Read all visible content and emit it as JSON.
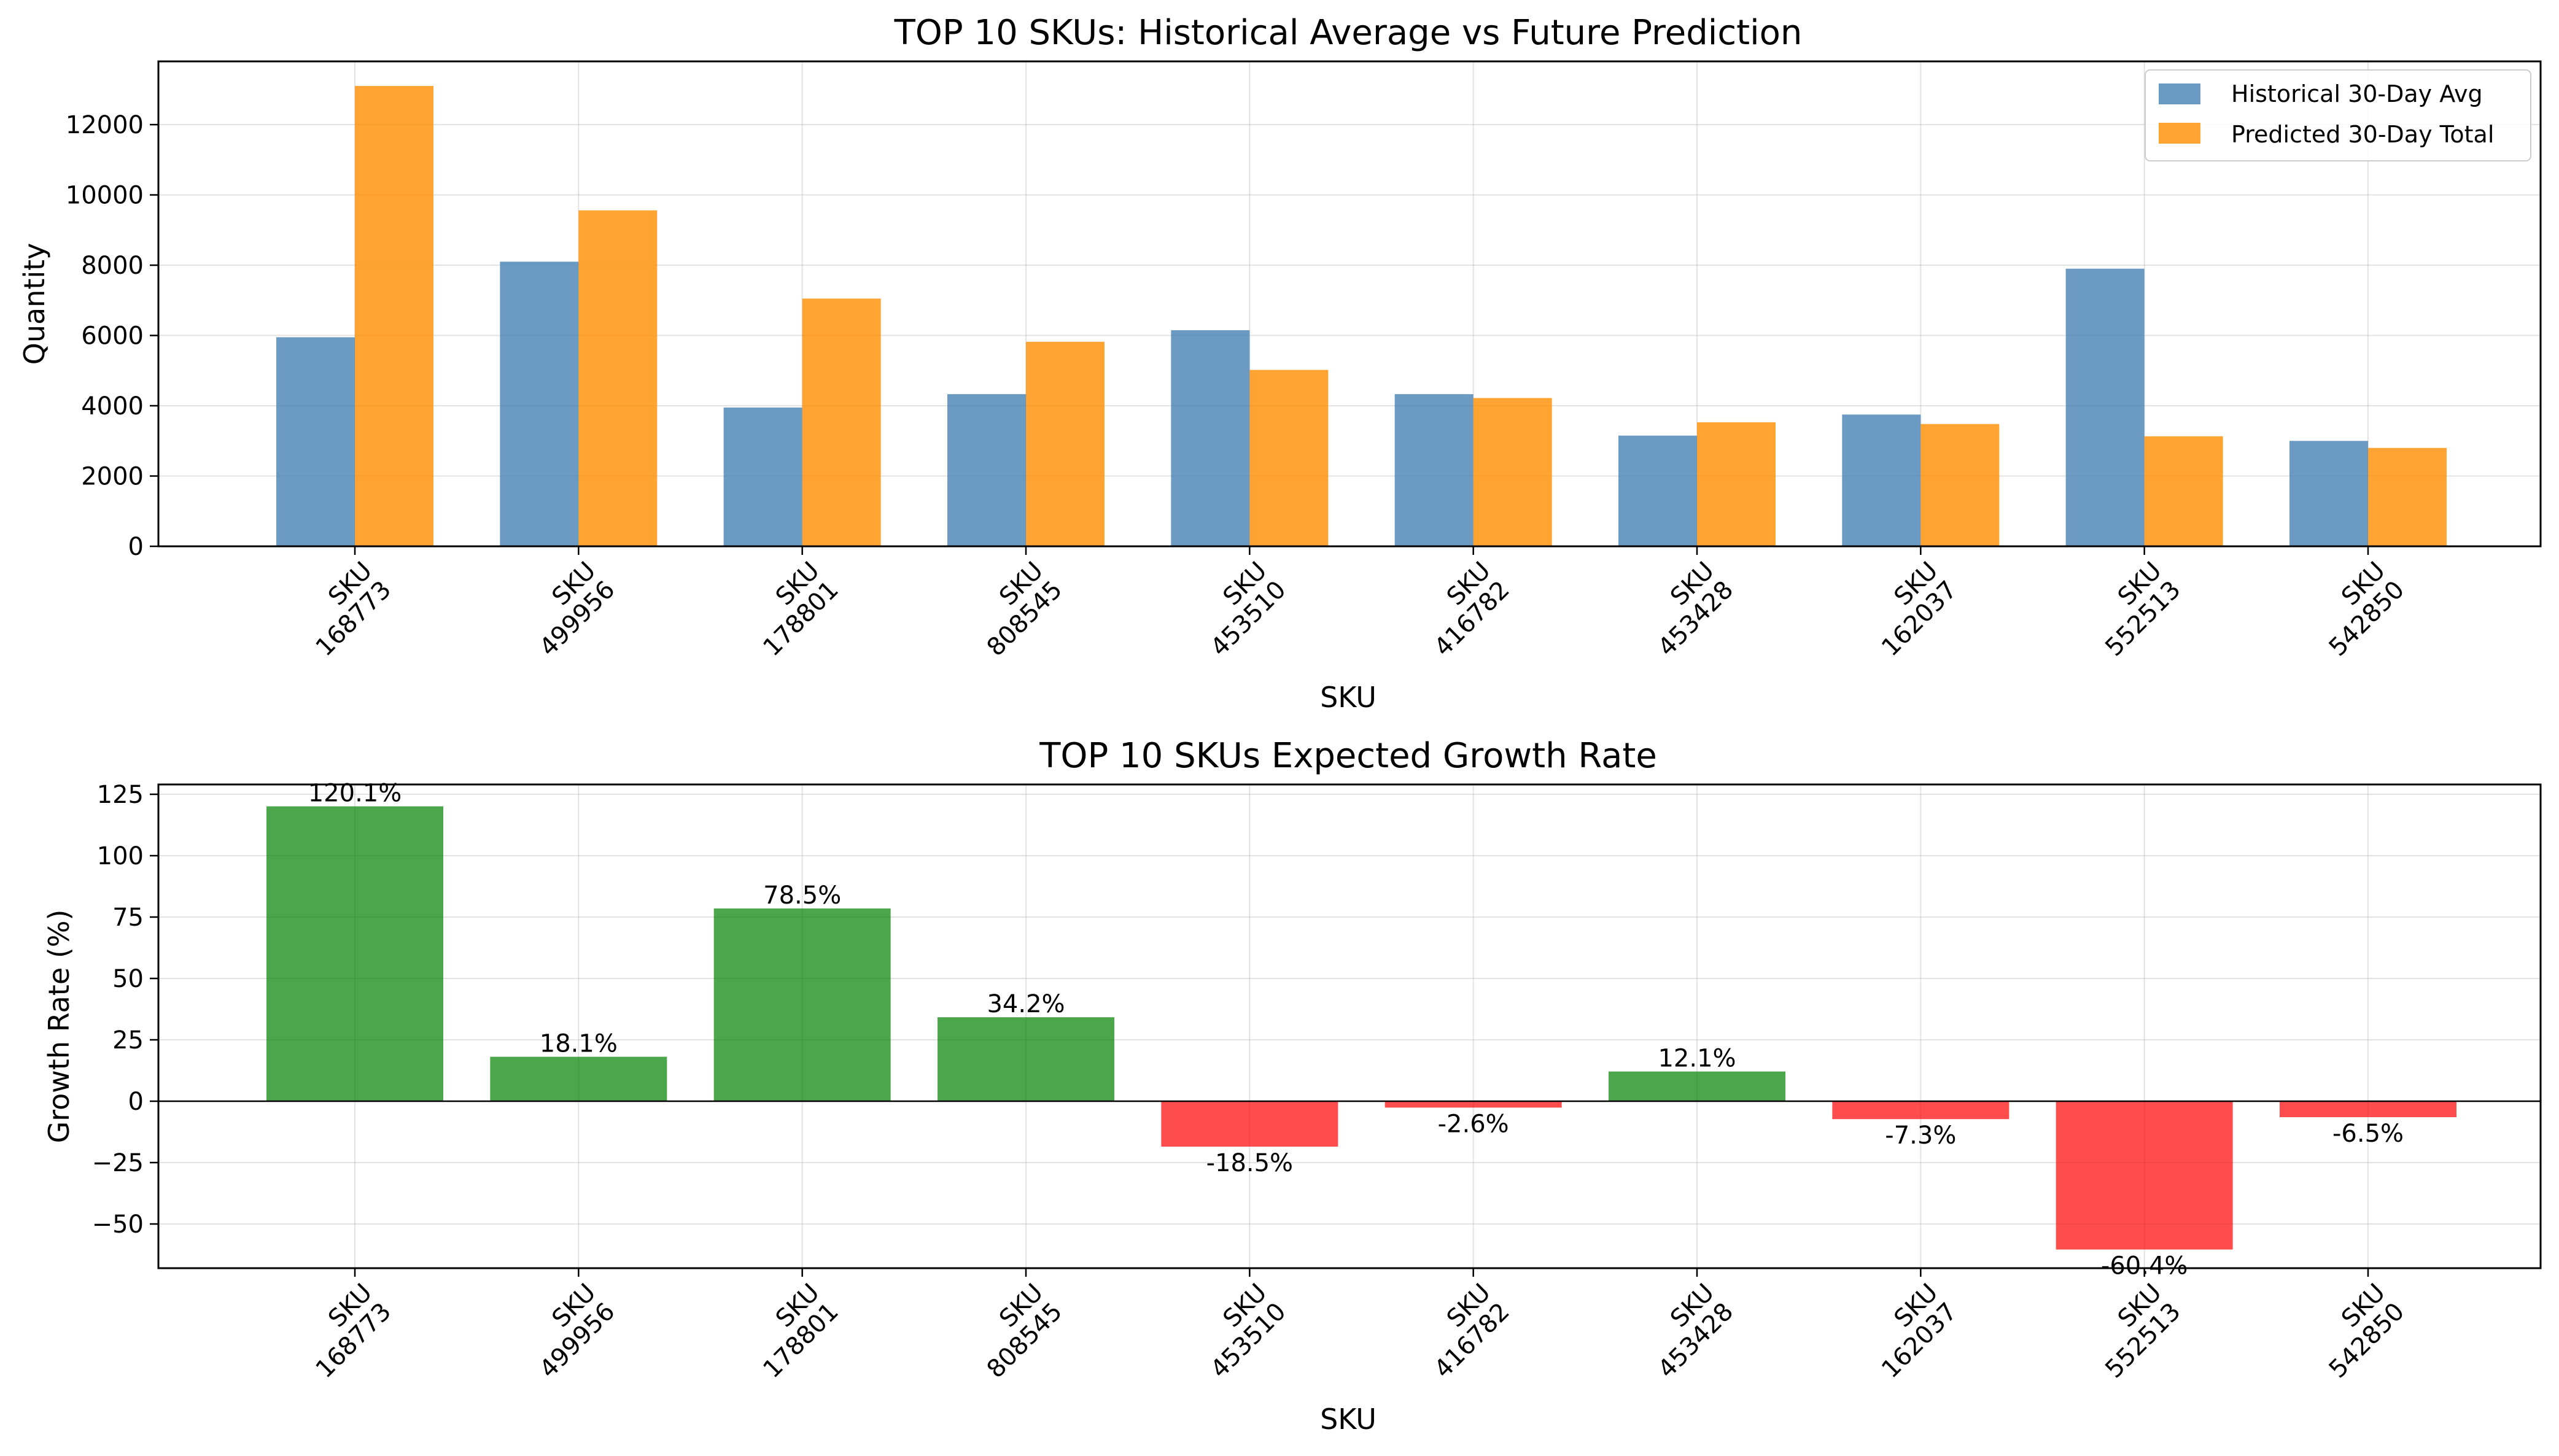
{
  "chart_data": [
    {
      "type": "bar",
      "title": "TOP 10 SKUs: Historical Average vs Future Prediction",
      "xlabel": "SKU",
      "ylabel": "Quantity",
      "categories": [
        "SKU\n168773",
        "SKU\n499956",
        "SKU\n178801",
        "SKU\n808545",
        "SKU\n453510",
        "SKU\n416782",
        "SKU\n453428",
        "SKU\n162037",
        "SKU\n552513",
        "SKU\n542850"
      ],
      "series": [
        {
          "name": "Historical 30-Day Avg",
          "color": "#4682b4",
          "values": [
            5950,
            8100,
            3950,
            4330,
            6150,
            4330,
            3150,
            3750,
            7900,
            3000
          ]
        },
        {
          "name": "Predicted 30-Day Total",
          "color": "#ff8c00",
          "values": [
            13100,
            9560,
            7050,
            5820,
            5020,
            4220,
            3530,
            3480,
            3130,
            2800
          ]
        }
      ],
      "ylim": [
        0,
        13800
      ],
      "yticks": [
        0,
        2000,
        4000,
        6000,
        8000,
        10000,
        12000
      ],
      "grid": true,
      "legend": "top-right"
    },
    {
      "type": "bar",
      "title": "TOP 10 SKUs Expected Growth Rate",
      "xlabel": "SKU",
      "ylabel": "Growth Rate (%)",
      "categories": [
        "SKU\n168773",
        "SKU\n499956",
        "SKU\n178801",
        "SKU\n808545",
        "SKU\n453510",
        "SKU\n416782",
        "SKU\n453428",
        "SKU\n162037",
        "SKU\n552513",
        "SKU\n542850"
      ],
      "values": [
        120.1,
        18.1,
        78.5,
        34.2,
        -18.5,
        -2.6,
        12.1,
        -7.3,
        -60.4,
        -6.5
      ],
      "data_labels": [
        "120.1%",
        "18.1%",
        "78.5%",
        "34.2%",
        "-18.5%",
        "-2.6%",
        "12.1%",
        "-7.3%",
        "-60.4%",
        "-6.5%"
      ],
      "positive_color": "#008000",
      "negative_color": "#ff0000",
      "ylim": [
        -68,
        129
      ],
      "yticks": [
        -50,
        -25,
        0,
        25,
        50,
        75,
        100,
        125
      ],
      "ytick_labels": [
        "−50",
        "−25",
        "0",
        "25",
        "50",
        "75",
        "100",
        "125"
      ],
      "grid": true
    }
  ]
}
